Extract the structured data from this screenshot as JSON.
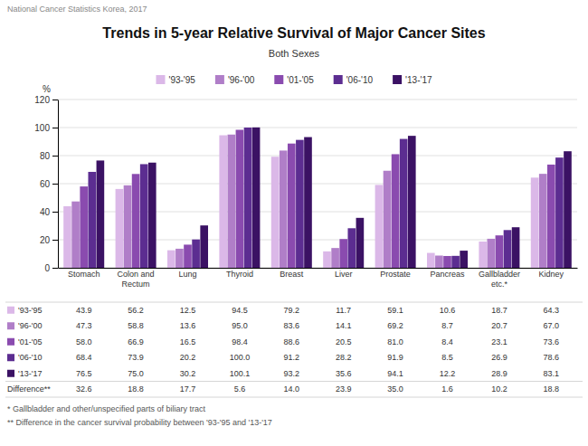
{
  "chart_data": {
    "type": "bar",
    "title": "Trends in 5-year Relative Survival of Major Cancer Sites",
    "subtitle": "Both Sexes",
    "header_note": "National Cancer Statistics  Korea, 2017",
    "ylabel": "%",
    "categories": [
      "Stomach",
      "Colon and\nRectum",
      "Lung",
      "Thyroid",
      "Breast",
      "Liver",
      "Prostate",
      "Pancreas",
      "Gallbladder\netc.*",
      "Kidney"
    ],
    "series": [
      {
        "name": "'93-'95",
        "color": "#dbb8e8",
        "values": [
          43.9,
          56.2,
          12.5,
          94.5,
          79.2,
          11.7,
          59.1,
          10.6,
          18.7,
          64.3
        ],
        "value_labels": [
          "43.9",
          "56.2",
          "12.5",
          "94.5",
          "79.2",
          "11.7",
          "59.1",
          "10.6",
          "18.7",
          "64.3"
        ]
      },
      {
        "name": "'96-'00",
        "color": "#b07ec8",
        "values": [
          47.3,
          58.8,
          13.6,
          95.0,
          83.6,
          14.1,
          69.2,
          8.7,
          20.7,
          67.0
        ],
        "value_labels": [
          "47.3",
          "58.8",
          "13.6",
          "95.0",
          "83.6",
          "14.1",
          "69.2",
          "8.7",
          "20.7",
          "67.0"
        ]
      },
      {
        "name": "'01-'05",
        "color": "#8a4baf",
        "values": [
          58.0,
          66.9,
          16.5,
          98.4,
          88.6,
          20.5,
          81.0,
          8.4,
          23.1,
          73.6
        ],
        "value_labels": [
          "58.0",
          "66.9",
          "16.5",
          "98.4",
          "88.6",
          "20.5",
          "81.0",
          "8.4",
          "23.1",
          "73.6"
        ]
      },
      {
        "name": "'06-'10",
        "color": "#5c2d91",
        "values": [
          68.4,
          73.9,
          20.2,
          100.0,
          91.2,
          28.2,
          91.9,
          8.5,
          26.9,
          78.6
        ],
        "value_labels": [
          "68.4",
          "73.9",
          "20.2",
          "100.0",
          "91.2",
          "28.2",
          "91.9",
          "8.5",
          "26.9",
          "78.6"
        ]
      },
      {
        "name": "'13-'17",
        "color": "#3b1264",
        "values": [
          76.5,
          75.0,
          30.2,
          100.1,
          93.2,
          35.6,
          94.1,
          12.2,
          28.9,
          83.1
        ],
        "value_labels": [
          "76.5",
          "75.0",
          "30.2",
          "100.1",
          "93.2",
          "35.6",
          "94.1",
          "12.2",
          "28.9",
          "83.1"
        ]
      }
    ],
    "difference": {
      "name": "Difference**",
      "values": [
        32.6,
        18.8,
        17.7,
        5.6,
        14.0,
        23.9,
        35.0,
        1.6,
        10.2,
        18.8
      ],
      "value_labels": [
        "32.6",
        "18.8",
        "17.7",
        "5.6",
        "14.0",
        "23.9",
        "35.0",
        "1.6",
        "10.2",
        "18.8"
      ]
    },
    "footnotes": [
      "* Gallbladder and other/unspecified parts of biliary tract",
      "** Difference in the cancer survival probability between '93-'95 and '13-'17"
    ],
    "ylim": [
      0,
      120
    ],
    "yticks": [
      0,
      20,
      40,
      60,
      80,
      100,
      120
    ],
    "grid": true,
    "legend": "top"
  }
}
